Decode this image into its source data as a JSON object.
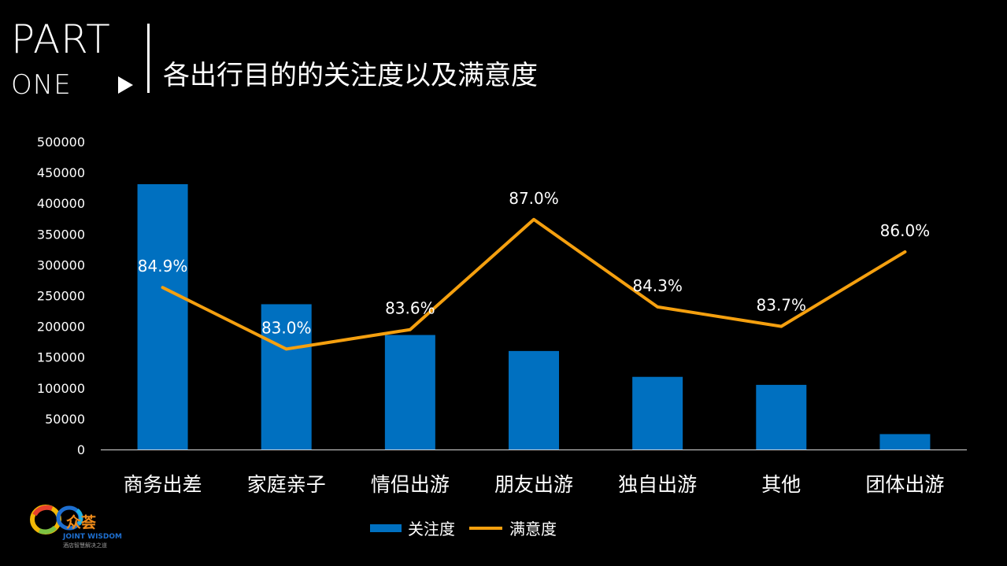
{
  "header": {
    "part": "PART",
    "one": "ONE",
    "title": "各出行目的的关注度以及满意度"
  },
  "logo": {
    "brand": "众荟",
    "english": "JOINT WISDOM",
    "subtitle": "酒店智慧解决之道"
  },
  "chart_data": {
    "type": "bar",
    "categories": [
      "商务出差",
      "家庭亲子",
      "情侣出游",
      "朋友出游",
      "独自出游",
      "其他",
      "团体出游"
    ],
    "series": [
      {
        "name": "关注度",
        "type": "bar",
        "values": [
          431000,
          236000,
          186000,
          160000,
          118000,
          105000,
          25000
        ]
      },
      {
        "name": "满意度",
        "type": "line",
        "values": [
          84.9,
          83.0,
          83.6,
          87.0,
          84.3,
          83.7,
          86.0
        ],
        "labels": [
          "84.9%",
          "83.0%",
          "83.6%",
          "87.0%",
          "84.3%",
          "83.7%",
          "86.0%"
        ]
      }
    ],
    "y_ticks": [
      "0",
      "50000",
      "100000",
      "150000",
      "200000",
      "250000",
      "300000",
      "350000",
      "400000",
      "450000",
      "500000"
    ],
    "ylim": [
      0,
      500000
    ],
    "secondary_ylim": [
      79.9,
      89.4
    ],
    "legend": "bottom",
    "grid": false,
    "colors": {
      "bar": "#0070c0",
      "line": "#f5a00f",
      "axis": "#d9d9d9"
    }
  }
}
